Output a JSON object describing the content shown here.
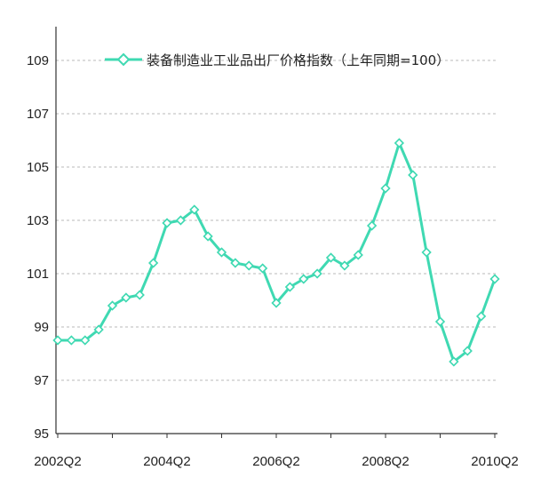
{
  "chart_data": {
    "type": "line",
    "series": [
      {
        "name": "装备制造业工业品出厂价格指数（上年同期=100）",
        "color": "#3fd9b2",
        "x": [
          "2002Q2",
          "2002Q3",
          "2002Q4",
          "2003Q1",
          "2003Q2",
          "2003Q3",
          "2003Q4",
          "2004Q1",
          "2004Q2",
          "2004Q3",
          "2004Q4",
          "2005Q1",
          "2005Q2",
          "2005Q3",
          "2005Q4",
          "2006Q1",
          "2006Q2",
          "2006Q3",
          "2006Q4",
          "2007Q1",
          "2007Q2",
          "2007Q3",
          "2007Q4",
          "2008Q1",
          "2008Q2",
          "2008Q3",
          "2008Q4",
          "2009Q1",
          "2009Q2",
          "2009Q3",
          "2009Q4",
          "2010Q1",
          "2010Q2"
        ],
        "values": [
          98.5,
          98.5,
          98.5,
          98.9,
          99.8,
          100.1,
          100.2,
          101.4,
          102.9,
          103.0,
          103.4,
          102.4,
          101.8,
          101.4,
          101.3,
          101.2,
          99.9,
          100.5,
          100.8,
          101.0,
          101.6,
          101.3,
          101.7,
          102.8,
          104.2,
          105.9,
          104.7,
          101.8,
          99.2,
          97.7,
          98.1,
          99.4,
          100.8
        ]
      }
    ],
    "x_tick_labels": [
      "2002Q2",
      "2004Q2",
      "2006Q2",
      "2008Q2",
      "2010Q2"
    ],
    "y_ticks": [
      95,
      97,
      99,
      101,
      103,
      105,
      107,
      109
    ],
    "ylim": [
      95,
      110
    ],
    "grid": "horizontal dashed",
    "legend_position": "top"
  }
}
